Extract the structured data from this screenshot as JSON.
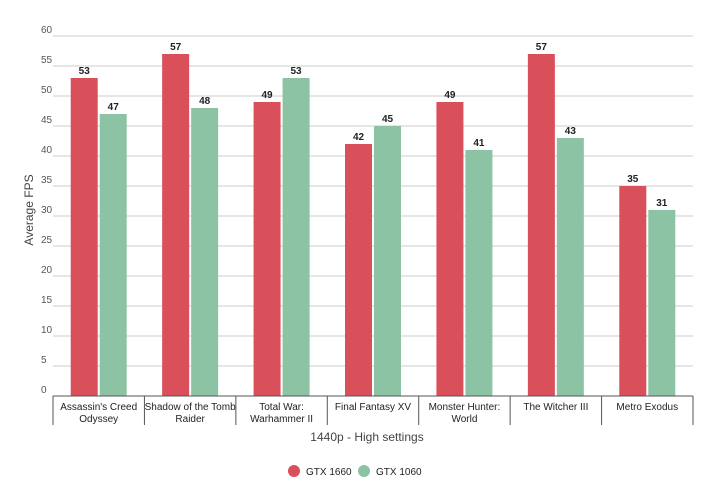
{
  "chart_data": {
    "type": "bar",
    "categories": [
      [
        "Assassin's Creed",
        "Odyssey"
      ],
      [
        "Shadow of the Tomb",
        "Raider"
      ],
      [
        "Total War:",
        "Warhammer II"
      ],
      [
        "Final Fantasy XV"
      ],
      [
        "Monster Hunter:",
        "World"
      ],
      [
        "The Witcher III"
      ],
      [
        "Metro Exodus"
      ]
    ],
    "series": [
      {
        "name": "GTX 1660",
        "color": "#d9505a",
        "values": [
          53,
          57,
          49,
          42,
          49,
          57,
          35
        ]
      },
      {
        "name": "GTX 1060",
        "color": "#8dc3a5",
        "values": [
          47,
          48,
          53,
          45,
          41,
          43,
          31
        ]
      }
    ],
    "ylabel": "Average FPS",
    "xlabel": "1440p - High settings",
    "ylim": [
      0,
      60
    ],
    "yticks": [
      0,
      5,
      10,
      15,
      20,
      25,
      30,
      35,
      40,
      45,
      50,
      55,
      60
    ],
    "grid": true,
    "legend_position": "bottom-center"
  }
}
